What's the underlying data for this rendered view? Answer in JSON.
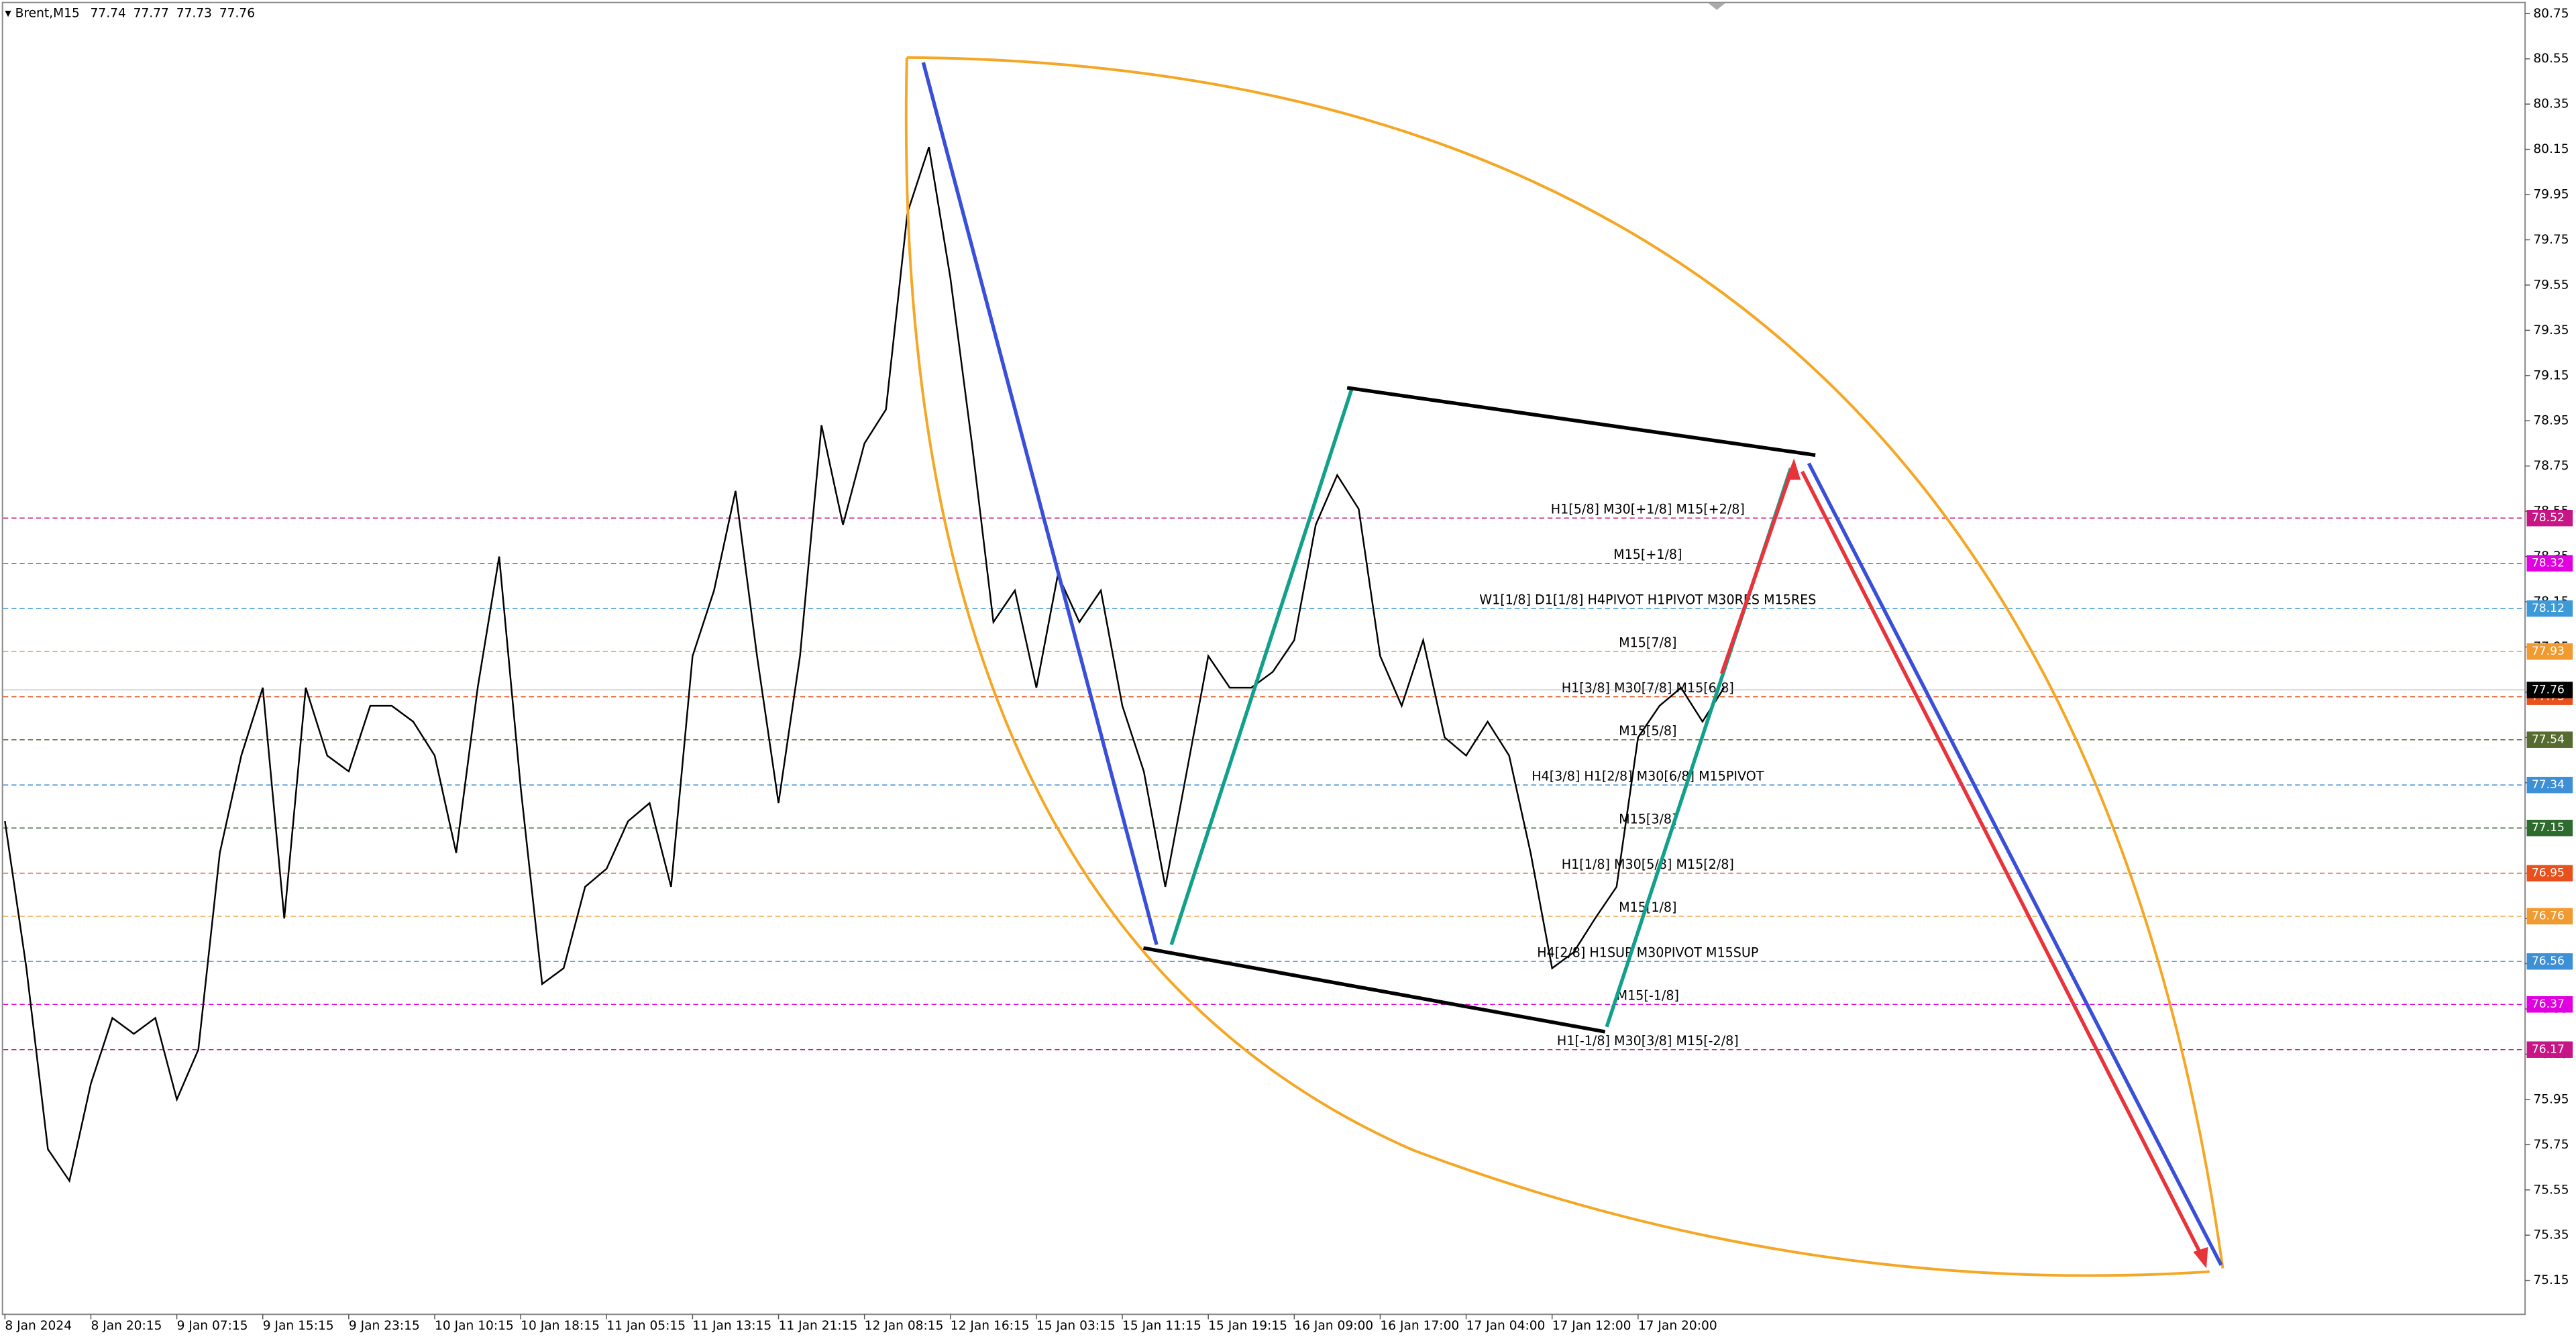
{
  "chart_data": {
    "type": "line",
    "symbol": "Brent,M15",
    "ohlc": [
      77.74,
      77.77,
      77.73,
      77.76
    ],
    "current_price": 77.76,
    "color": "#000000",
    "categories": [
      "8 Jan 2024",
      null,
      null,
      null,
      "8 Jan 20:15",
      null,
      null,
      null,
      "9 Jan 07:15",
      null,
      null,
      null,
      "9 Jan 15:15",
      null,
      null,
      null,
      "9 Jan 23:15",
      null,
      null,
      null,
      "10 Jan 10:15",
      null,
      null,
      null,
      "10 Jan 18:15",
      null,
      null,
      null,
      "11 Jan 05:15",
      null,
      null,
      null,
      "11 Jan 13:15",
      null,
      null,
      null,
      "11 Jan 21:15",
      null,
      null,
      null,
      "12 Jan 08:15",
      null,
      null,
      null,
      "12 Jan 16:15",
      null,
      null,
      null,
      "15 Jan 03:15",
      null,
      null,
      null,
      "15 Jan 11:15",
      null,
      null,
      null,
      "15 Jan 19:15",
      null,
      null,
      null,
      "16 Jan 09:00",
      null,
      null,
      null,
      "16 Jan 17:00",
      null,
      null,
      null,
      "17 Jan 04:00",
      null,
      null,
      null,
      "17 Jan 12:00",
      null,
      null,
      null,
      "17 Jan 20:00",
      null,
      null,
      null,
      null
    ],
    "values": [
      77.18,
      76.53,
      75.73,
      75.59,
      76.02,
      76.31,
      76.24,
      76.31,
      75.95,
      76.17,
      77.04,
      77.47,
      77.77,
      76.75,
      77.77,
      77.47,
      77.4,
      77.69,
      77.69,
      77.62,
      77.47,
      77.04,
      77.77,
      78.35,
      77.33,
      76.46,
      76.53,
      76.89,
      76.97,
      77.18,
      77.26,
      76.89,
      77.91,
      78.2,
      78.64,
      77.91,
      77.26,
      77.91,
      78.93,
      78.49,
      78.85,
      79.0,
      79.87,
      80.16,
      79.58,
      78.85,
      78.06,
      78.2,
      77.77,
      78.27,
      78.06,
      78.2,
      77.69,
      77.4,
      76.89,
      77.4,
      77.91,
      77.77,
      77.77,
      77.84,
      77.98,
      78.49,
      78.71,
      78.56,
      77.91,
      77.69,
      77.98,
      77.55,
      77.47,
      77.62,
      77.47,
      77.04,
      76.53,
      76.6,
      76.75,
      76.89,
      77.55,
      77.69,
      77.77,
      77.62,
      77.77
    ],
    "ylim": [
      75.0,
      80.81
    ],
    "yticks": [
      80.75,
      80.55,
      80.35,
      80.15,
      79.95,
      79.75,
      79.55,
      79.35,
      79.15,
      78.95,
      78.75,
      78.55,
      78.35,
      78.15,
      77.95,
      77.75,
      77.55,
      77.35,
      77.15,
      76.95,
      76.75,
      76.55,
      76.35,
      76.15,
      75.95,
      75.75,
      75.55,
      75.35,
      75.15
    ],
    "levels": [
      {
        "value": 78.52,
        "label": "H1[5/8] M30[+1/8] M15[+2/8]",
        "color": "#c71585"
      },
      {
        "value": 78.32,
        "label": "M15[+1/8]",
        "color": "#e000e0"
      },
      {
        "value": 78.12,
        "label": "W1[1/8] D1[1/8] H4PIVOT H1PIVOT M30RES M15RES",
        "color": "#3d9ad8"
      },
      {
        "value": 77.93,
        "label": "M15[7/8]",
        "color": "#f09a30"
      },
      {
        "value": 77.73,
        "label": "H1[3/8] M30[7/8] M15[6/8]",
        "color": "#e8501c"
      },
      {
        "value": 77.54,
        "label": "M15[5/8]",
        "color": "#556b2f"
      },
      {
        "value": 77.34,
        "label": "H4[3/8] H1[2/8] M30[6/8] M15PIVOT",
        "color": "#3d8fd6"
      },
      {
        "value": 77.15,
        "label": "M15[3/8]",
        "color": "#2e6b2e"
      },
      {
        "value": 76.95,
        "label": "H1[1/8] M30[5/8] M15[2/8]",
        "color": "#e8501c"
      },
      {
        "value": 76.76,
        "label": "M15[1/8]",
        "color": "#f09a30"
      },
      {
        "value": 76.56,
        "label": "H4[2/8] H1SUP M30PIVOT M15SUP",
        "color": "#3d8fd6"
      },
      {
        "value": 76.37,
        "label": "M15[-1/8]",
        "color": "#e000e0"
      },
      {
        "value": 76.17,
        "label": "H1[-1/8] M30[3/8] M15[-2/8]",
        "color": "#c71585"
      }
    ]
  }
}
